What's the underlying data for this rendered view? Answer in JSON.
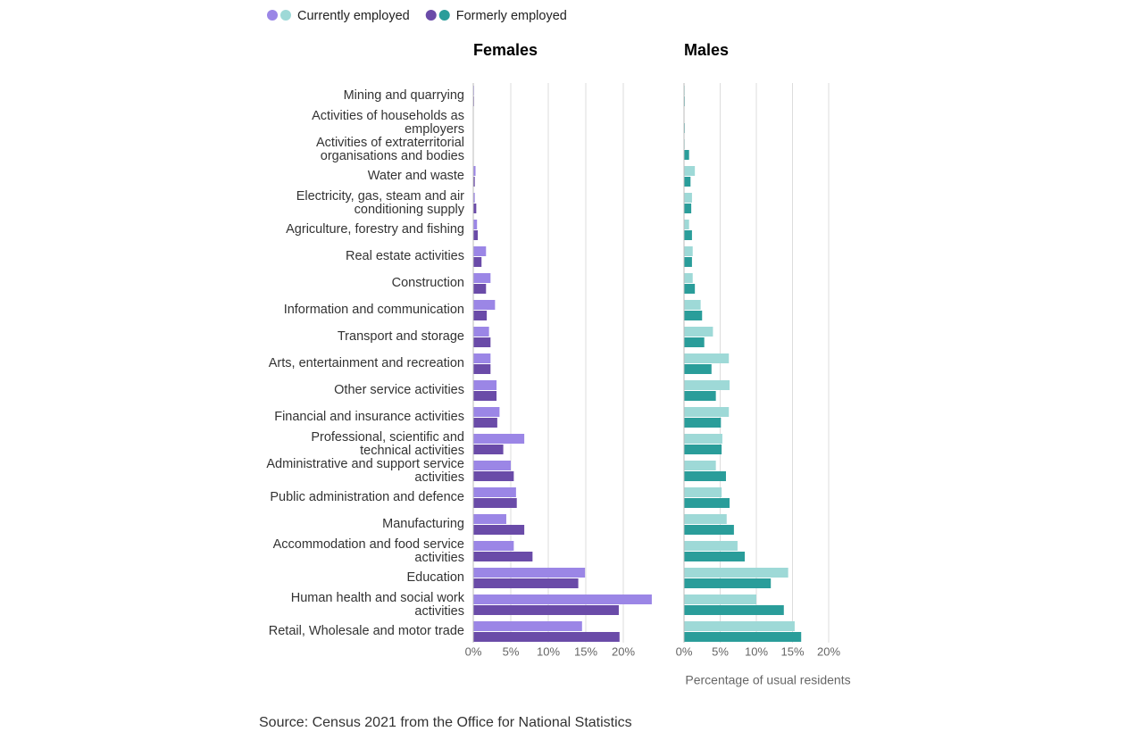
{
  "chart_data": {
    "type": "bar",
    "series_names": [
      "Currently employed",
      "Formerly employed"
    ],
    "categories": [
      "Mining and quarrying",
      "Activities of households as employers",
      "Activities of extraterritorial organisations and bodies",
      "Water and waste",
      "Electricity, gas, steam and air conditioning supply",
      "Agriculture, forestry and fishing",
      "Real estate activities",
      "Construction",
      "Information and communication",
      "Transport and storage",
      "Arts, entertainment and recreation",
      "Other service activities",
      "Financial and insurance activities",
      "Professional, scientific and technical activities",
      "Administrative and support service activities",
      "Public administration and defence",
      "Manufacturing",
      "Accommodation and food service activities",
      "Education",
      "Human health and social work activities",
      "Retail, Wholesale and motor trade"
    ],
    "panels": [
      {
        "title": "Females",
        "series": [
          {
            "color": "#9b86e6",
            "values": [
              0.1,
              0,
              0,
              0.3,
              0.2,
              0.5,
              1.7,
              2.3,
              2.9,
              2.1,
              2.3,
              3.1,
              3.5,
              6.8,
              5.0,
              5.7,
              4.4,
              5.4,
              14.9,
              23.8,
              14.5
            ]
          },
          {
            "color": "#6a4ba8",
            "values": [
              0.1,
              0,
              0,
              0.2,
              0.4,
              0.6,
              1.1,
              1.7,
              1.8,
              2.3,
              2.3,
              3.1,
              3.2,
              4.0,
              5.4,
              5.8,
              6.8,
              7.9,
              14.0,
              19.4,
              19.5
            ]
          }
        ],
        "xlim": [
          0,
          20
        ],
        "xticks": [
          {
            "value": 0,
            "label": "0%"
          },
          {
            "value": 5,
            "label": "5%"
          },
          {
            "value": 10,
            "label": "10%"
          },
          {
            "value": 15,
            "label": "15%"
          },
          {
            "value": 20,
            "label": "20%"
          }
        ]
      },
      {
        "title": "Males",
        "series": [
          {
            "color": "#9ed9d7",
            "values": [
              0.1,
              0,
              0.1,
              1.5,
              1.1,
              0.7,
              1.2,
              1.2,
              2.3,
              4.0,
              6.2,
              6.3,
              6.2,
              5.3,
              4.4,
              5.2,
              5.9,
              7.4,
              14.4,
              10.0,
              15.3
            ]
          },
          {
            "color": "#2a9d9a",
            "values": [
              0.1,
              0.1,
              0.7,
              0.9,
              1.0,
              1.1,
              1.1,
              1.5,
              2.5,
              2.8,
              3.8,
              4.4,
              5.1,
              5.2,
              5.8,
              6.3,
              6.9,
              8.4,
              12.0,
              13.8,
              16.2
            ]
          }
        ],
        "xlim": [
          0,
          20
        ],
        "xticks": [
          {
            "value": 0,
            "label": "0%"
          },
          {
            "value": 5,
            "label": "5%"
          },
          {
            "value": 10,
            "label": "10%"
          },
          {
            "value": 15,
            "label": "15%"
          },
          {
            "value": 20,
            "label": "20%"
          }
        ]
      }
    ],
    "x_label": "Percentage of usual residents",
    "source": "Source: Census 2021 from the Office for National Statistics"
  }
}
